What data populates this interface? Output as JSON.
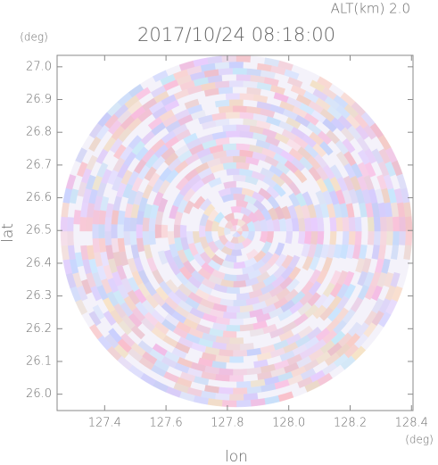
{
  "chart_data": {
    "type": "radar-ppi",
    "title": "2017/10/24 08:18:00",
    "subtitle": "ALT(km) 2.0",
    "x_label": "lon",
    "x_unit": "(deg)",
    "y_label": "lat",
    "y_unit": "(deg)",
    "xlim": [
      127.245,
      128.405
    ],
    "xticks": [
      127.4,
      127.6,
      127.8,
      {
        "value": 128.0,
        "label": "128.0"
      },
      128.2,
      128.4
    ],
    "ylim": [
      25.95,
      27.035
    ],
    "yticks": [
      {
        "value": 26.0,
        "label": "26.0"
      },
      26.1,
      26.2,
      26.3,
      26.4,
      26.5,
      26.6,
      26.7,
      26.8,
      26.9,
      {
        "value": 27.0,
        "label": "27.0"
      }
    ]
  }
}
